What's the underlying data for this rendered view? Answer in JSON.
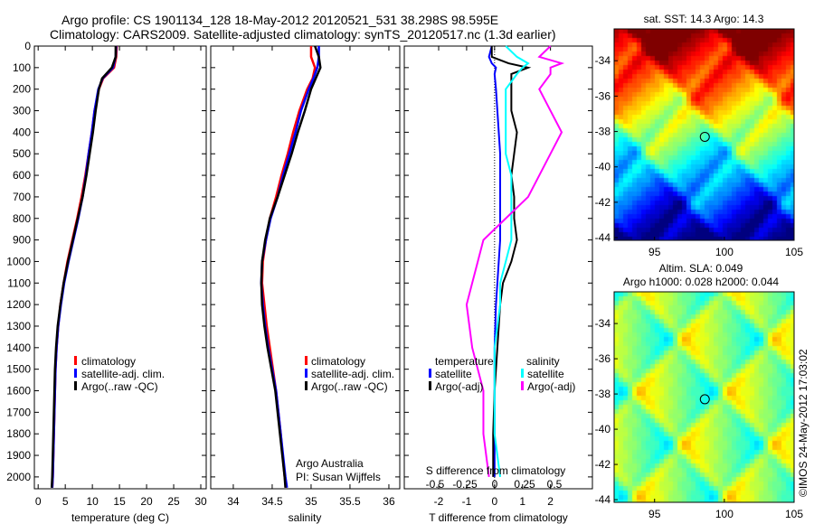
{
  "title": {
    "line1": "Argo profile: CS 1901134_128 18-May-2012 20120521_531 38.298S 98.595E",
    "line2": "Climatology: CARS2009. Satellite-adjusted climatology: synTS_20120517.nc (1.3d earlier)"
  },
  "credit": "©IMOS 24-May-2012 17:03:02",
  "attribution": {
    "line1": "Argo Australia",
    "line2": "PI: Susan Wijffels"
  },
  "colors": {
    "climatology": "#ff0000",
    "satellite": "#0000ff",
    "argo": "#000000",
    "sal_satellite": "#00ffff",
    "sal_argo": "#ff00ff"
  },
  "chart_data": [
    {
      "type": "line",
      "name": "temperature",
      "xlabel": "temperature (deg C)",
      "ylabel": "depth",
      "xlim": [
        -0.7,
        31
      ],
      "ylim": [
        2055,
        0
      ],
      "xticks": [
        0,
        5,
        10,
        15,
        20,
        25,
        30
      ],
      "yticks": [
        0,
        100,
        200,
        300,
        400,
        500,
        600,
        700,
        800,
        900,
        1000,
        1100,
        1200,
        1300,
        1400,
        1500,
        1600,
        1700,
        1800,
        1900,
        2000
      ],
      "legend": [
        "climatology",
        "satellite-adj. clim.",
        "Argo(..raw -QC)"
      ],
      "depth": [
        0,
        50,
        100,
        150,
        200,
        300,
        400,
        500,
        600,
        700,
        800,
        900,
        1000,
        1100,
        1200,
        1300,
        1400,
        1500,
        1600,
        1800,
        2000,
        2050
      ],
      "series": [
        {
          "name": "climatology",
          "values": [
            14.5,
            14.4,
            14.0,
            12.0,
            11.2,
            10.4,
            9.9,
            9.3,
            8.7,
            8.0,
            7.2,
            6.3,
            5.4,
            4.7,
            4.1,
            3.7,
            3.4,
            3.2,
            3.1,
            2.9,
            2.7,
            2.6
          ]
        },
        {
          "name": "satellite-adj. clim.",
          "values": [
            14.4,
            14.3,
            13.8,
            11.9,
            11.1,
            10.4,
            9.9,
            9.3,
            8.8,
            8.2,
            7.4,
            6.5,
            5.6,
            4.8,
            4.2,
            3.7,
            3.4,
            3.2,
            3.1,
            2.9,
            2.7,
            2.6
          ]
        },
        {
          "name": "Argo(..raw -QC)",
          "values": [
            14.3,
            14.3,
            13.6,
            11.8,
            11.2,
            10.6,
            10.1,
            9.5,
            8.9,
            8.2,
            7.3,
            6.4,
            5.5,
            4.7,
            4.1,
            3.6,
            3.3,
            3.1,
            3.0,
            2.8,
            2.6,
            2.5
          ]
        }
      ]
    },
    {
      "type": "line",
      "name": "salinity",
      "xlabel": "salinity",
      "xlim": [
        33.71,
        36.14
      ],
      "ylim": [
        2055,
        0
      ],
      "xticks": [
        34,
        34.5,
        35,
        35.5,
        36
      ],
      "legend": [
        "climatology",
        "satellite-adj. clim.",
        "Argo(..raw -QC)"
      ],
      "depth": [
        0,
        50,
        100,
        150,
        200,
        300,
        400,
        500,
        600,
        700,
        800,
        900,
        1000,
        1100,
        1200,
        1300,
        1400,
        1500,
        1600,
        1800,
        2000,
        2050
      ],
      "series": [
        {
          "name": "climatology",
          "values": [
            35.0,
            35.0,
            35.05,
            35.02,
            34.95,
            34.85,
            34.77,
            34.7,
            34.62,
            34.55,
            34.47,
            34.42,
            34.38,
            34.37,
            34.4,
            34.43,
            34.47,
            34.51,
            34.55,
            34.61,
            34.66,
            34.68
          ]
        },
        {
          "name": "satellite-adj. clim.",
          "values": [
            35.1,
            35.1,
            35.08,
            35.03,
            34.97,
            34.87,
            34.8,
            34.72,
            34.64,
            34.57,
            34.48,
            34.42,
            34.37,
            34.36,
            34.38,
            34.41,
            34.45,
            34.5,
            34.55,
            34.61,
            34.67,
            34.69
          ]
        },
        {
          "name": "Argo(..raw -QC)",
          "values": [
            35.05,
            35.1,
            35.12,
            35.06,
            35.0,
            34.92,
            34.83,
            34.75,
            34.66,
            34.57,
            34.47,
            34.41,
            34.37,
            34.36,
            34.37,
            34.4,
            34.44,
            34.49,
            34.54,
            34.6,
            34.66,
            34.67
          ]
        }
      ]
    },
    {
      "type": "line",
      "name": "differences",
      "xlabel": "T difference from climatology",
      "xlabel2": "S difference from climatology",
      "xlim": [
        -3.23,
        3.5
      ],
      "ylim": [
        2055,
        0
      ],
      "xticks": [
        -2,
        -1,
        0,
        1,
        2
      ],
      "xticks_s": [
        "-0.5",
        "-0.25",
        "0",
        "0.25",
        "0.5"
      ],
      "legend": {
        "temperature_title": "temperature",
        "salinity_title": "salinity",
        "t_sat": "satellite",
        "t_argo": "Argo(-adj)",
        "s_sat": "satellite",
        "s_argo": "Argo(-adj)"
      },
      "depth": [
        0,
        50,
        80,
        100,
        130,
        200,
        300,
        400,
        500,
        600,
        700,
        800,
        900,
        1000,
        1100,
        1200,
        1400,
        1600,
        1800,
        2000
      ],
      "series": [
        {
          "name": "T satellite",
          "values": [
            -0.1,
            -0.2,
            -0.1,
            0.05,
            0.0,
            0.05,
            0.1,
            0.15,
            0.2,
            0.2,
            0.2,
            0.2,
            0.2,
            0.15,
            0.1,
            0.05,
            0.0,
            0.0,
            0.0,
            0.0
          ]
        },
        {
          "name": "T Argo(-adj)",
          "values": [
            -0.1,
            -0.1,
            0.5,
            1.2,
            0.6,
            0.6,
            0.6,
            0.8,
            0.7,
            0.6,
            0.7,
            0.7,
            0.8,
            0.6,
            0.3,
            0.2,
            0.1,
            0.0,
            -0.05,
            -0.05
          ]
        },
        {
          "name": "S satellite",
          "values": [
            0.1,
            0.2,
            0.3,
            0.25,
            0.2,
            0.1,
            0.1,
            0.1,
            0.1,
            0.15,
            0.15,
            0.15,
            0.15,
            0.1,
            0.05,
            0.05,
            0.0,
            0.0,
            0.0,
            0.05
          ]
        },
        {
          "name": "S Argo(-adj)",
          "values": [
            0.5,
            0.4,
            0.6,
            0.5,
            0.5,
            0.4,
            0.5,
            0.6,
            0.5,
            0.4,
            0.3,
            0.1,
            -0.1,
            -0.15,
            -0.2,
            -0.25,
            -0.2,
            -0.1,
            -0.1,
            -0.05
          ]
        }
      ]
    },
    {
      "type": "heatmap",
      "name": "sst-map",
      "title": "sat. SST: 14.3 Argo: 14.3",
      "xlim": [
        92.1,
        105
      ],
      "ylim": [
        -44.15,
        -32.2
      ],
      "xticks": [
        95,
        100,
        105
      ],
      "yticks": [
        -34,
        -36,
        -38,
        -40,
        -42,
        -44
      ],
      "marker": {
        "lon": 98.6,
        "lat": -38.3
      }
    },
    {
      "type": "heatmap",
      "name": "sla-map",
      "title": "Altim. SLA: 0.049",
      "subtitle": "Argo h1000: 0.028 h2000: 0.044",
      "xlim": [
        92.1,
        105
      ],
      "ylim": [
        -44.15,
        -32.2
      ],
      "xticks": [
        95,
        100,
        105
      ],
      "yticks": [
        -34,
        -36,
        -38,
        -40,
        -42,
        -44
      ],
      "marker": {
        "lon": 98.6,
        "lat": -38.3
      }
    }
  ]
}
